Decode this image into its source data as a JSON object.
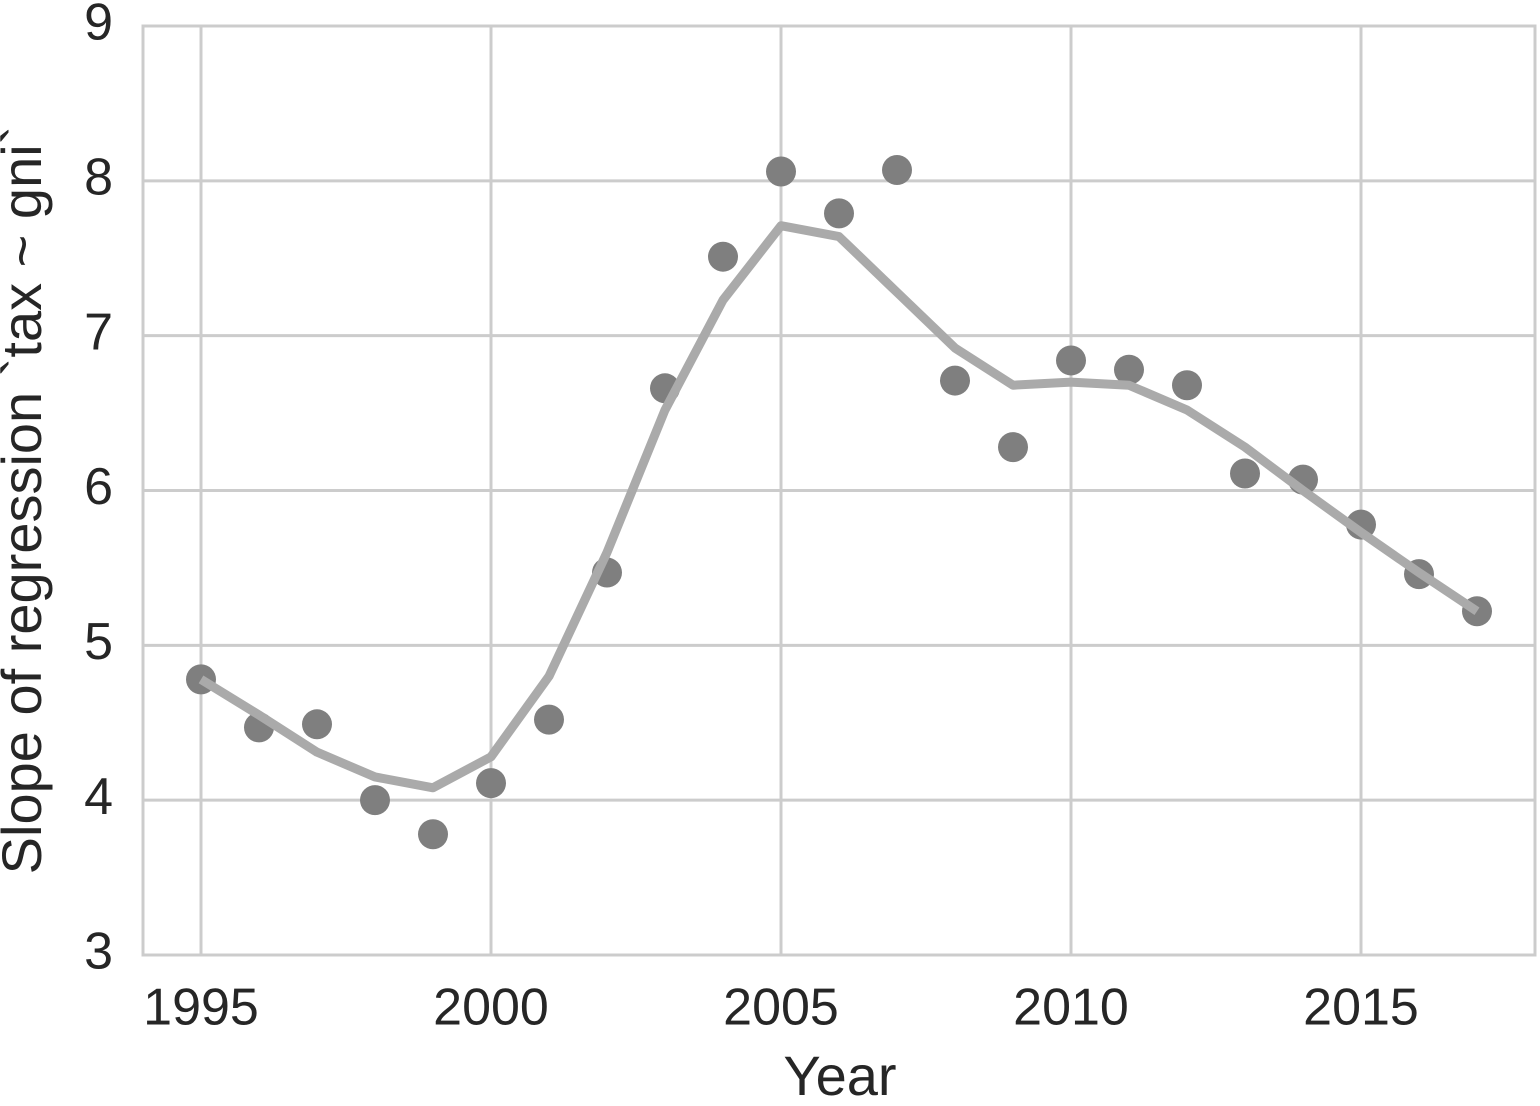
{
  "chart_data": {
    "type": "scatter",
    "xlabel": "Year",
    "ylabel": "Slope of regression `tax ~ gni`",
    "x": [
      1995,
      1996,
      1997,
      1998,
      1999,
      2000,
      2001,
      2002,
      2003,
      2004,
      2005,
      2006,
      2007,
      2008,
      2009,
      2010,
      2011,
      2012,
      2013,
      2014,
      2015,
      2016,
      2017
    ],
    "series": [
      {
        "type": "scatter",
        "color": "#7f7f7f",
        "values": [
          4.78,
          4.47,
          4.49,
          4.0,
          3.78,
          4.11,
          4.52,
          5.47,
          6.66,
          7.51,
          8.06,
          7.79,
          8.07,
          6.71,
          6.28,
          6.84,
          6.78,
          6.68,
          6.11,
          6.07,
          5.78,
          5.46,
          5.22
        ]
      },
      {
        "type": "line",
        "color": "#aaaaaa",
        "values": [
          4.78,
          4.55,
          4.31,
          4.15,
          4.08,
          4.28,
          4.8,
          5.6,
          6.52,
          7.23,
          7.71,
          7.64,
          7.28,
          6.92,
          6.68,
          6.7,
          6.68,
          6.52,
          6.28,
          6.0,
          5.73,
          5.47,
          5.22
        ]
      }
    ],
    "xlim": [
      1994,
      2018
    ],
    "xticks": [
      1995,
      2000,
      2005,
      2010,
      2015
    ],
    "ylim": [
      3,
      9
    ],
    "yticks": [
      3,
      4,
      5,
      6,
      7,
      8,
      9
    ],
    "grid": true
  }
}
